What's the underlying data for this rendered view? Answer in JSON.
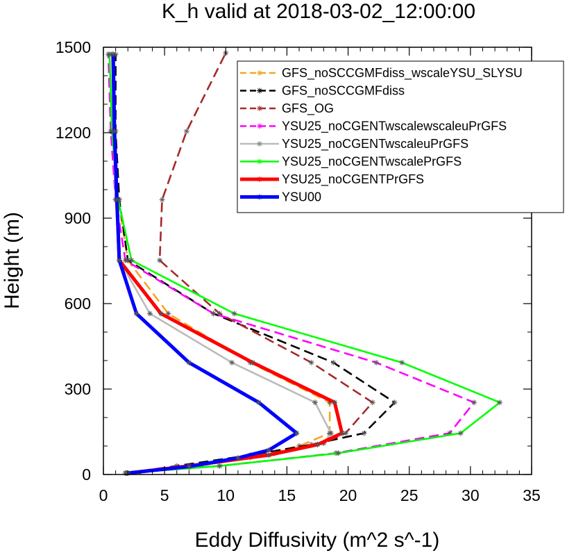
{
  "chart_data": {
    "type": "line",
    "title": "K_h valid at 2018-03-02_12:00:00",
    "xlabel": "Eddy Diffusivity (m^2 s^-1)",
    "ylabel": "Height (m)",
    "xlim": [
      0,
      35
    ],
    "ylim": [
      0,
      1500
    ],
    "xticks": [
      0,
      5,
      10,
      15,
      20,
      25,
      30,
      35
    ],
    "yticks": [
      0,
      300,
      600,
      900,
      1200,
      1500
    ],
    "grid": false,
    "legend_position": "top-right",
    "series": [
      {
        "name": "GFS_noSCCGMFdiss_wscaleYSU_SLYSU",
        "color": "#f5a623",
        "dash": "dash",
        "points": [
          [
            2.0,
            5
          ],
          [
            7.0,
            25
          ],
          [
            12.0,
            60
          ],
          [
            16.0,
            100
          ],
          [
            18.5,
            145
          ],
          [
            18.5,
            253
          ],
          [
            12.0,
            393
          ],
          [
            5.3,
            565
          ],
          [
            2.0,
            752
          ],
          [
            1.2,
            965
          ],
          [
            0.9,
            1205
          ],
          [
            0.8,
            1475
          ]
        ]
      },
      {
        "name": "GFS_noSCCGMFdiss",
        "color": "#000000",
        "dash": "dash",
        "points": [
          [
            1.9,
            5
          ],
          [
            6.0,
            30
          ],
          [
            12.0,
            68
          ],
          [
            17.0,
            105
          ],
          [
            21.3,
            145
          ],
          [
            23.8,
            253
          ],
          [
            18.8,
            393
          ],
          [
            9.0,
            565
          ],
          [
            2.0,
            752
          ],
          [
            1.3,
            965
          ],
          [
            1.0,
            1205
          ],
          [
            1.0,
            1475
          ]
        ]
      },
      {
        "name": "GFS_OG",
        "color": "#a52a2a",
        "dash": "dash",
        "points": [
          [
            2.0,
            5
          ],
          [
            8.0,
            32
          ],
          [
            14.0,
            75
          ],
          [
            18.0,
            110
          ],
          [
            19.8,
            145
          ],
          [
            22.0,
            253
          ],
          [
            17.0,
            393
          ],
          [
            9.5,
            565
          ],
          [
            4.6,
            752
          ],
          [
            4.8,
            965
          ],
          [
            6.8,
            1205
          ],
          [
            10.0,
            1480
          ]
        ]
      },
      {
        "name": "YSU25_noCGENTwscalewscaleuPrGFS",
        "color": "#ff00ff",
        "dash": "dash",
        "points": [
          [
            1.8,
            5
          ],
          [
            9.5,
            30
          ],
          [
            19.0,
            75
          ],
          [
            28.3,
            145
          ],
          [
            30.3,
            253
          ],
          [
            22.3,
            393
          ],
          [
            9.0,
            565
          ],
          [
            1.8,
            752
          ],
          [
            1.0,
            965
          ],
          [
            0.6,
            1205
          ],
          [
            0.4,
            1475
          ]
        ]
      },
      {
        "name": "YSU25_noCGENTwscaleuPrGFS",
        "color": "#bbbbbb",
        "dash": "solid",
        "points": [
          [
            2.0,
            5
          ],
          [
            7.5,
            30
          ],
          [
            13.5,
            68
          ],
          [
            18.0,
            110
          ],
          [
            18.6,
            145
          ],
          [
            17.3,
            253
          ],
          [
            10.5,
            393
          ],
          [
            3.8,
            565
          ],
          [
            1.3,
            752
          ],
          [
            1.0,
            965
          ],
          [
            0.8,
            1205
          ],
          [
            0.7,
            1475
          ]
        ]
      },
      {
        "name": "YSU25_noCGENTwscalePrGFS",
        "color": "#00ff00",
        "dash": "solid",
        "points": [
          [
            1.8,
            5
          ],
          [
            9.5,
            30
          ],
          [
            19.2,
            75
          ],
          [
            29.2,
            145
          ],
          [
            32.4,
            253
          ],
          [
            24.4,
            393
          ],
          [
            10.7,
            565
          ],
          [
            2.3,
            752
          ],
          [
            1.2,
            965
          ],
          [
            0.7,
            1205
          ],
          [
            0.5,
            1475
          ]
        ]
      },
      {
        "name": "YSU25_noCGENTPrGFS",
        "color": "#ff0000",
        "dash": "solid",
        "points": [
          [
            2.0,
            5
          ],
          [
            7.0,
            30
          ],
          [
            13.5,
            68
          ],
          [
            17.5,
            105
          ],
          [
            19.5,
            145
          ],
          [
            18.9,
            253
          ],
          [
            12.2,
            393
          ],
          [
            4.7,
            565
          ],
          [
            1.3,
            752
          ],
          [
            1.1,
            965
          ],
          [
            0.9,
            1205
          ],
          [
            0.8,
            1475
          ]
        ]
      },
      {
        "name": "YSU00",
        "color": "#0000ff",
        "dash": "solid",
        "points": [
          [
            2.0,
            5
          ],
          [
            7.0,
            28
          ],
          [
            11.0,
            58
          ],
          [
            13.5,
            85
          ],
          [
            15.8,
            145
          ],
          [
            12.7,
            253
          ],
          [
            7.0,
            393
          ],
          [
            2.7,
            565
          ],
          [
            1.3,
            752
          ],
          [
            1.1,
            965
          ],
          [
            0.9,
            1205
          ],
          [
            0.8,
            1475
          ]
        ]
      }
    ]
  }
}
